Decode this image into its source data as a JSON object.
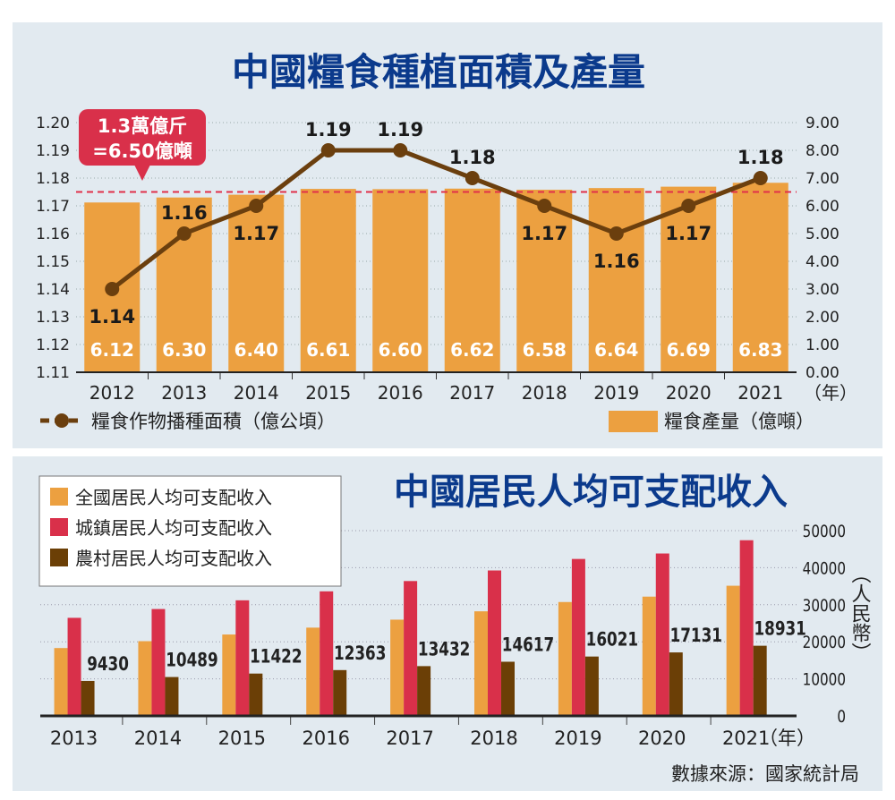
{
  "chart_data": [
    {
      "type": "bar+line",
      "title": "中國糧食種植面積及產量",
      "categories": [
        "2012",
        "2013",
        "2014",
        "2015",
        "2016",
        "2017",
        "2018",
        "2019",
        "2020",
        "2021"
      ],
      "x_unit": "（年）",
      "series": [
        {
          "name": "糧食作物播種面積（億公頃）",
          "type": "line",
          "axis": "left",
          "values": [
            1.14,
            1.16,
            1.17,
            1.19,
            1.19,
            1.18,
            1.17,
            1.16,
            1.17,
            1.18
          ],
          "color": "#6b3f0e"
        },
        {
          "name": "糧食產量（億噸）",
          "type": "bar",
          "axis": "right",
          "values": [
            6.12,
            6.3,
            6.4,
            6.61,
            6.6,
            6.62,
            6.58,
            6.64,
            6.69,
            6.83
          ],
          "color": "#eca040"
        }
      ],
      "left_ticks": [
        "1.11",
        "1.12",
        "1.13",
        "1.14",
        "1.15",
        "1.16",
        "1.17",
        "1.18",
        "1.19",
        "1.20"
      ],
      "right_ticks": [
        "0.00",
        "1.00",
        "2.00",
        "3.00",
        "4.00",
        "5.00",
        "6.00",
        "7.00",
        "8.00",
        "9.00"
      ],
      "ylim_left": [
        1.11,
        1.2
      ],
      "ylim_right": [
        0,
        9
      ],
      "reference_line": {
        "value": 6.5,
        "color": "#e0304a"
      },
      "callout": [
        "1.3萬億斤",
        "=6.50億噸"
      ],
      "grid": true
    },
    {
      "type": "bar",
      "title": "中國居民人均可支配收入",
      "categories": [
        "2013",
        "2014",
        "2015",
        "2016",
        "2017",
        "2018",
        "2019",
        "2020",
        "2021"
      ],
      "x_unit": "（年）",
      "ylabel": "（人民幣）",
      "series": [
        {
          "name": "全國居民人均可支配收入",
          "values": [
            18311,
            20167,
            21966,
            23821,
            25974,
            28228,
            30733,
            32189,
            35128
          ],
          "color": "#eca040"
        },
        {
          "name": "城鎮居民人均可支配收入",
          "values": [
            26467,
            28844,
            31195,
            33616,
            36396,
            39251,
            42359,
            43834,
            47412
          ],
          "color": "#d9304a"
        },
        {
          "name": "農村居民人均可支配收入",
          "values": [
            9430,
            10489,
            11422,
            12363,
            13432,
            14617,
            16021,
            17131,
            18931
          ],
          "color": "#6b3f06",
          "labels": [
            "9430",
            "10489",
            "11422",
            "12363",
            "13432",
            "14617",
            "16021",
            "17131",
            "18931"
          ]
        }
      ],
      "ticks": [
        "0",
        "10000",
        "20000",
        "30000",
        "40000",
        "50000"
      ],
      "ylim": [
        0,
        50000
      ],
      "legend": "top-left",
      "grid": true
    }
  ],
  "source": "數據來源：國家統計局"
}
